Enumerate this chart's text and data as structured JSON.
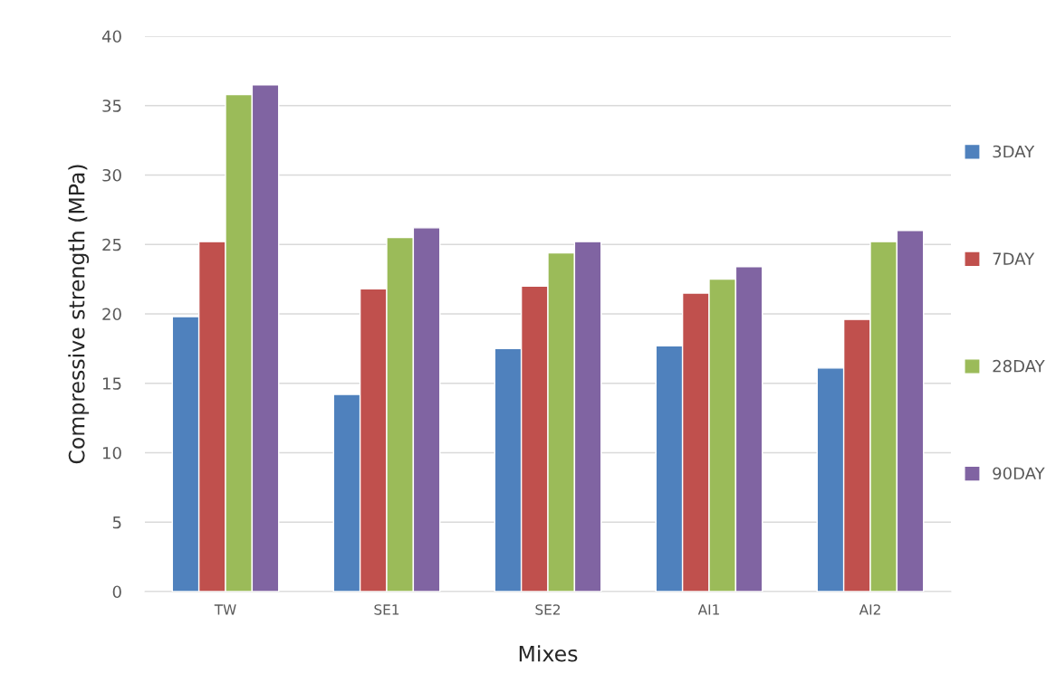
{
  "chart_data": {
    "type": "bar",
    "xlabel": "Mixes",
    "ylabel": "Compressive strength (MPa)",
    "categories": [
      "TW",
      "SE1",
      "SE2",
      "AI1",
      "AI2"
    ],
    "series": [
      {
        "name": "3DAY",
        "color": "#4f81bd",
        "values": [
          19.8,
          14.2,
          17.5,
          17.7,
          16.1
        ]
      },
      {
        "name": "7DAY",
        "color": "#c0504d",
        "values": [
          25.2,
          21.8,
          22.0,
          21.5,
          19.6
        ]
      },
      {
        "name": "28DAY",
        "color": "#9bbb59",
        "values": [
          35.8,
          25.5,
          24.4,
          22.5,
          25.2
        ]
      },
      {
        "name": "90DAY",
        "color": "#8064a2",
        "values": [
          36.5,
          26.2,
          25.2,
          23.4,
          26.0
        ]
      }
    ],
    "ylim": [
      0,
      40
    ],
    "yticks": [
      0,
      5,
      10,
      15,
      20,
      25,
      30,
      35,
      40
    ],
    "grid": "y",
    "legend": "right"
  }
}
